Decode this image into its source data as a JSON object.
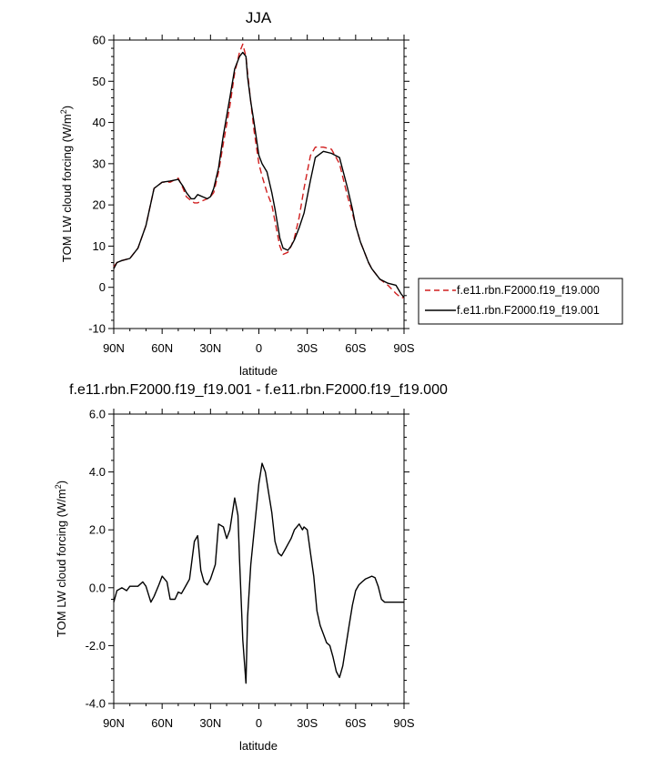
{
  "chart_data": [
    {
      "type": "line",
      "title": "JJA",
      "xlabel": "latitude",
      "ylabel": "TOM LW cloud forcing (W/m²)",
      "ylim": [
        -10,
        60
      ],
      "xlim": [
        90,
        -90
      ],
      "x_tick_values": [
        90,
        60,
        30,
        0,
        -30,
        -60,
        -90
      ],
      "x_tick_labels": [
        "90N",
        "60N",
        "30N",
        "0",
        "30S",
        "60S",
        "90S"
      ],
      "y_tick_values": [
        -10,
        0,
        10,
        20,
        30,
        40,
        50,
        60
      ],
      "y_tick_labels": [
        "-10",
        "0",
        "10",
        "20",
        "30",
        "40",
        "50",
        "60"
      ],
      "legend": "right-bottom",
      "grid": false,
      "series": [
        {
          "name": "f.e11.rbn.F2000.f19_f19.000",
          "color": "#d11f1f",
          "style": "dashed",
          "x": [
            90,
            88,
            85,
            80,
            75,
            70,
            65,
            60,
            55,
            50,
            47,
            45,
            42,
            40,
            38,
            35,
            32,
            30,
            28,
            25,
            22,
            18,
            15,
            12,
            10,
            8,
            7,
            5,
            3,
            0,
            -2,
            -5,
            -8,
            -10,
            -13,
            -15,
            -18,
            -20,
            -22,
            -25,
            -28,
            -32,
            -35,
            -40,
            -45,
            -50,
            -55,
            -58,
            -60,
            -63,
            -65,
            -68,
            -70,
            -75,
            -80,
            -85,
            -88,
            -90
          ],
          "y": [
            5,
            6,
            6.5,
            7,
            9.5,
            15,
            24,
            25.5,
            25.5,
            26.5,
            24,
            22,
            21,
            20.5,
            20.5,
            21,
            21.5,
            22,
            23,
            28,
            35,
            44,
            52,
            57,
            59,
            56,
            52,
            45,
            38,
            30,
            27,
            23,
            20,
            16,
            10,
            8,
            8.5,
            10,
            12,
            17,
            24,
            32,
            34,
            34,
            33.5,
            30,
            22,
            18,
            15,
            11,
            9,
            6,
            4.5,
            2,
            0.5,
            -1.5,
            -2.5,
            -2.5
          ]
        },
        {
          "name": "f.e11.rbn.F2000.f19_f19.001",
          "color": "#000000",
          "style": "solid",
          "x": [
            90,
            88,
            85,
            80,
            75,
            70,
            65,
            60,
            55,
            50,
            47,
            45,
            42,
            40,
            38,
            35,
            32,
            30,
            28,
            25,
            22,
            18,
            15,
            12,
            10,
            8,
            7,
            5,
            3,
            0,
            -2,
            -5,
            -8,
            -10,
            -13,
            -15,
            -18,
            -20,
            -22,
            -25,
            -28,
            -32,
            -35,
            -40,
            -45,
            -50,
            -55,
            -58,
            -60,
            -63,
            -65,
            -68,
            -70,
            -75,
            -80,
            -85,
            -88,
            -90
          ],
          "y": [
            4.5,
            6,
            6.5,
            7,
            9.5,
            15,
            24,
            25.5,
            25.8,
            26.2,
            24.5,
            23,
            21.5,
            21.5,
            22.5,
            22,
            21.5,
            22,
            24,
            29,
            37,
            46,
            53,
            56,
            57,
            56,
            51,
            45,
            40,
            32,
            30,
            28,
            23,
            19,
            12,
            9.5,
            9,
            10,
            11.5,
            14.5,
            18,
            26,
            31.5,
            33,
            32.5,
            31.5,
            24,
            19,
            15,
            11,
            9,
            6,
            4.5,
            2,
            1,
            0.5,
            -1.5,
            -2.5
          ]
        }
      ]
    },
    {
      "type": "line",
      "title": "f.e11.rbn.F2000.f19_f19.001 - f.e11.rbn.F2000.f19_f19.000",
      "xlabel": "latitude",
      "ylabel": "TOM LW cloud forcing (W/m²)",
      "ylim": [
        -4,
        6
      ],
      "xlim": [
        90,
        -90
      ],
      "x_tick_values": [
        90,
        60,
        30,
        0,
        -30,
        -60,
        -90
      ],
      "x_tick_labels": [
        "90N",
        "60N",
        "30N",
        "0",
        "30S",
        "60S",
        "90S"
      ],
      "y_tick_values": [
        -4,
        -2,
        0,
        2,
        4,
        6
      ],
      "y_tick_labels": [
        "-4.0",
        "-2.0",
        "0.0",
        "2.0",
        "4.0",
        "6.0"
      ],
      "grid": false,
      "series": [
        {
          "color": "#000000",
          "style": "solid",
          "x": [
            90,
            88,
            85,
            82,
            80,
            78,
            75,
            72,
            70,
            67,
            65,
            62,
            60,
            57,
            55,
            52,
            50,
            48,
            45,
            43,
            40,
            38,
            36,
            34,
            32,
            30,
            27,
            25,
            22,
            20,
            18,
            15,
            13,
            12,
            10,
            8,
            7,
            5,
            2,
            0,
            -2,
            -4,
            -6,
            -8,
            -10,
            -12,
            -14,
            -16,
            -18,
            -20,
            -22,
            -25,
            -27,
            -28,
            -30,
            -32,
            -34,
            -36,
            -38,
            -40,
            -42,
            -44,
            -46,
            -48,
            -50,
            -52,
            -54,
            -56,
            -58,
            -60,
            -62,
            -64,
            -66,
            -68,
            -70,
            -72,
            -74,
            -76,
            -78,
            -80,
            -82,
            -84,
            -86,
            -88,
            -90
          ],
          "y": [
            -0.5,
            -0.1,
            0.0,
            -0.1,
            0.05,
            0.05,
            0.05,
            0.2,
            0.05,
            -0.5,
            -0.3,
            0.1,
            0.4,
            0.2,
            -0.4,
            -0.4,
            -0.15,
            -0.2,
            0.1,
            0.3,
            1.6,
            1.8,
            0.6,
            0.2,
            0.1,
            0.3,
            0.8,
            2.2,
            2.1,
            1.7,
            2.0,
            3.1,
            2.5,
            1.0,
            -1.8,
            -3.3,
            -1.0,
            0.8,
            2.5,
            3.6,
            4.3,
            4.0,
            3.3,
            2.6,
            1.6,
            1.2,
            1.1,
            1.3,
            1.5,
            1.7,
            2.0,
            2.2,
            2.0,
            2.1,
            2.0,
            1.2,
            0.4,
            -0.8,
            -1.3,
            -1.6,
            -1.9,
            -2.0,
            -2.4,
            -2.9,
            -3.1,
            -2.7,
            -2.0,
            -1.3,
            -0.6,
            -0.1,
            0.1,
            0.2,
            0.3,
            0.35,
            0.4,
            0.35,
            0.05,
            -0.4,
            -0.5,
            -0.5,
            -0.5,
            -0.5,
            -0.5,
            -0.5,
            -0.5
          ]
        }
      ]
    }
  ]
}
